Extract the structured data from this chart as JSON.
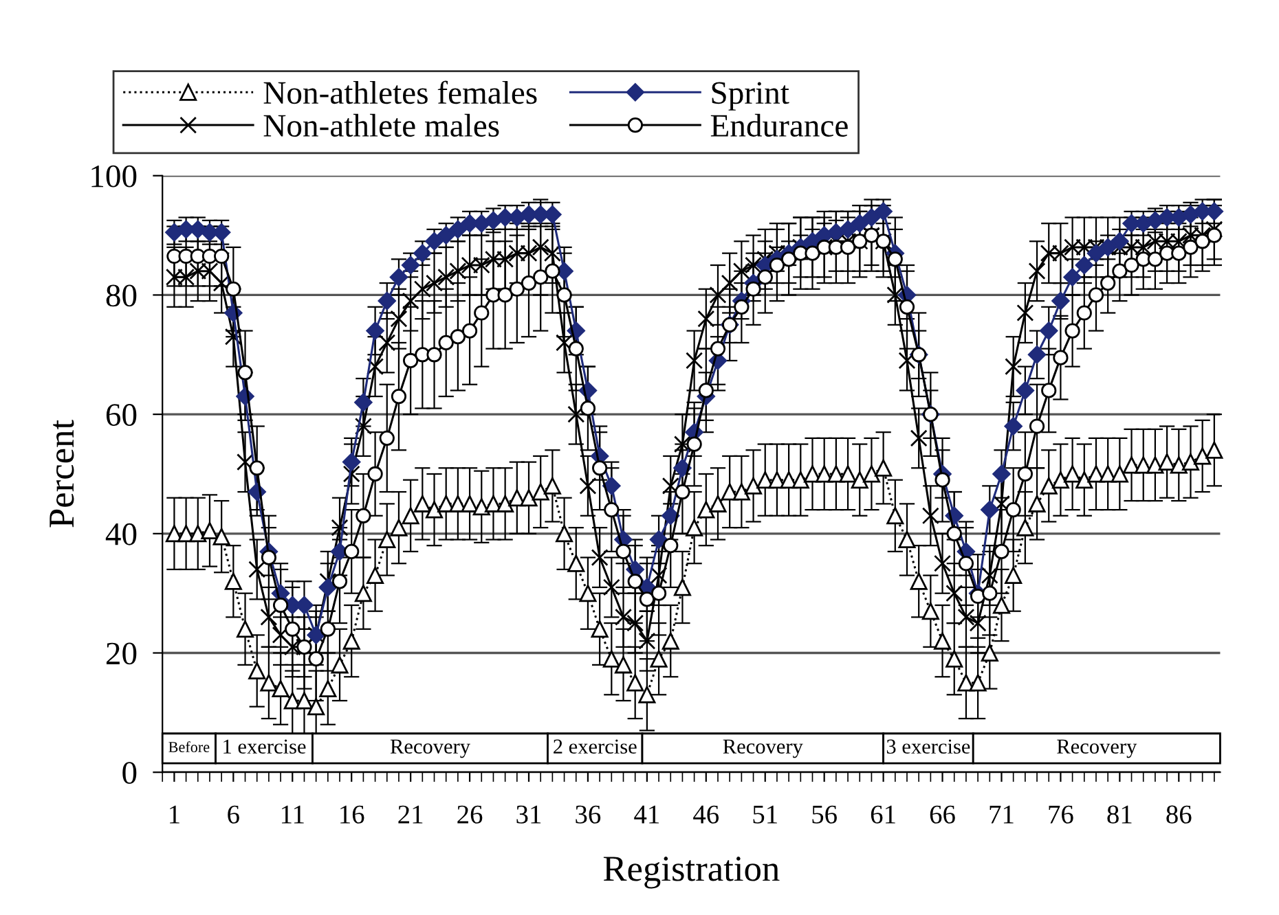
{
  "chart_data": {
    "type": "line",
    "xlabel": "Registration",
    "ylabel": "Percent",
    "x": [
      1,
      2,
      3,
      4,
      5,
      6,
      7,
      8,
      9,
      10,
      11,
      12,
      13,
      14,
      15,
      16,
      17,
      18,
      19,
      20,
      21,
      22,
      23,
      24,
      25,
      26,
      27,
      28,
      29,
      30,
      31,
      32,
      33,
      34,
      35,
      36,
      37,
      38,
      39,
      40,
      41,
      42,
      43,
      44,
      45,
      46,
      47,
      48,
      49,
      50,
      51,
      52,
      53,
      54,
      55,
      56,
      57,
      58,
      59,
      60,
      61,
      62,
      63,
      64,
      65,
      66,
      67,
      68,
      69,
      70,
      71,
      72,
      73,
      74,
      75,
      76,
      77,
      78,
      79,
      80,
      81,
      82,
      83,
      84,
      85,
      86,
      87,
      88,
      89
    ],
    "xlim": [
      0,
      89.5
    ],
    "xticks": [
      1,
      6,
      11,
      16,
      21,
      26,
      31,
      36,
      41,
      46,
      51,
      56,
      61,
      66,
      71,
      76,
      81,
      86
    ],
    "ylim": [
      0,
      100
    ],
    "yticks": [
      0,
      20,
      40,
      60,
      80,
      100
    ],
    "grid": "y",
    "legend": "top",
    "series": [
      {
        "name": "Non-athletes females",
        "color": "#000000",
        "marker": "triangle",
        "line_style": "dotted",
        "values": [
          40,
          40,
          40,
          40.5,
          39.5,
          32,
          24,
          17,
          15,
          14,
          12,
          12,
          11,
          14,
          18,
          22,
          30,
          33,
          39,
          41,
          43,
          45,
          44,
          45,
          45,
          45,
          44.5,
          45,
          45,
          46,
          46,
          47,
          48,
          40,
          35,
          30,
          24,
          19,
          18,
          15,
          13,
          19,
          22,
          31,
          41,
          44,
          45,
          47,
          47,
          48,
          49,
          49,
          49,
          49,
          50,
          50,
          50,
          50,
          49,
          50,
          51,
          43,
          39,
          32,
          27,
          22,
          19,
          15,
          15,
          20,
          28,
          33,
          41,
          45,
          48,
          49,
          50,
          49,
          50,
          50,
          50,
          51.5,
          51.5,
          51.5,
          52,
          51.5,
          52,
          53,
          54
        ],
        "errors": [
          6,
          6,
          6,
          6,
          6,
          6,
          6,
          6,
          6,
          6,
          6,
          6,
          6,
          6,
          6,
          6,
          6,
          6,
          6,
          6,
          6,
          6,
          6,
          6,
          6,
          6,
          6,
          6,
          6,
          6,
          6,
          6,
          6,
          6,
          6,
          6,
          6,
          6,
          6,
          6,
          6,
          6,
          6,
          6,
          6,
          6,
          6,
          6,
          6,
          6,
          6,
          6,
          6,
          6,
          6,
          6,
          6,
          6,
          6,
          6,
          6,
          6,
          6,
          6,
          6,
          6,
          6,
          6,
          6,
          6,
          6,
          6,
          6,
          6,
          6,
          6,
          6,
          6,
          6,
          6,
          6,
          6,
          6,
          6,
          6,
          6,
          6,
          6,
          6
        ]
      },
      {
        "name": "Non-athlete males",
        "color": "#000000",
        "marker": "cross",
        "line_style": "solid",
        "values": [
          83,
          83,
          84,
          84,
          82,
          73,
          52,
          34,
          26,
          23,
          21,
          21,
          23,
          32,
          41,
          50,
          58,
          68,
          72,
          76,
          79,
          81,
          82,
          83,
          84,
          85,
          85,
          86,
          86,
          87,
          87,
          88,
          87,
          72,
          60,
          48,
          36,
          31,
          26,
          25,
          22,
          33,
          48,
          55,
          69,
          76,
          80,
          82,
          84,
          85,
          86,
          87,
          87,
          88,
          88,
          88,
          89,
          89,
          89,
          90,
          89,
          80,
          69,
          56,
          43,
          35,
          30,
          26,
          25,
          33,
          45,
          68,
          77,
          84,
          87,
          87,
          88,
          88,
          88,
          88,
          88,
          88,
          88,
          89,
          89,
          89,
          90,
          90,
          91
        ],
        "errors": [
          5,
          5,
          5,
          5,
          5,
          5,
          5,
          5,
          5,
          5,
          5,
          5,
          5,
          5,
          5,
          5,
          5,
          5,
          5,
          5,
          5,
          5,
          5,
          5,
          5,
          5,
          5,
          5,
          5,
          5,
          5,
          8,
          5,
          5,
          5,
          5,
          5,
          5,
          5,
          5,
          5,
          5,
          5,
          5,
          5,
          5,
          5,
          5,
          5,
          5,
          5,
          5,
          5,
          5,
          5,
          5,
          5,
          5,
          5,
          5,
          5,
          5,
          5,
          5,
          5,
          5,
          5,
          5,
          5,
          5,
          5,
          5,
          5,
          5,
          5,
          5,
          5,
          5,
          5,
          5,
          5,
          5,
          5,
          5,
          5,
          5,
          5,
          5,
          5
        ]
      },
      {
        "name": "Sprint",
        "color": "#1f2b7b",
        "marker": "diamond",
        "line_style": "solid",
        "values": [
          90.5,
          91,
          91,
          90.5,
          90.5,
          77,
          63,
          47,
          37,
          30,
          28,
          28,
          23,
          31,
          37,
          52,
          62,
          74,
          79,
          83,
          85,
          87,
          89,
          90,
          91,
          92,
          92,
          92.5,
          93,
          93,
          93.5,
          93.5,
          93.5,
          84,
          74,
          64,
          53,
          48,
          39,
          34,
          31,
          39,
          43,
          51,
          57,
          63,
          69,
          75,
          79,
          82,
          85,
          86,
          87,
          88,
          89,
          90,
          90.5,
          91,
          92,
          93,
          94,
          87,
          80,
          70,
          60,
          50,
          43,
          37,
          30,
          44,
          50,
          58,
          64,
          70,
          74,
          79,
          83,
          85,
          87,
          88,
          89,
          92,
          92,
          92.5,
          93,
          93,
          93.5,
          94,
          94
        ],
        "errors": [
          2,
          2,
          2,
          2,
          2,
          4,
          4,
          4,
          4,
          4,
          4,
          4,
          4,
          4,
          4,
          4,
          4,
          4,
          3,
          3,
          2,
          2,
          2,
          2,
          2,
          2,
          2,
          2,
          2,
          2,
          2,
          2,
          2,
          4,
          4,
          4,
          4,
          4,
          4,
          4,
          4,
          4,
          4,
          4,
          4,
          4,
          4,
          3,
          3,
          3,
          2,
          2,
          2,
          2,
          2,
          2,
          2,
          2,
          2,
          2,
          2,
          4,
          4,
          4,
          4,
          4,
          4,
          4,
          4,
          4,
          4,
          4,
          4,
          4,
          4,
          3,
          3,
          3,
          2,
          2,
          2,
          2,
          2,
          2,
          2,
          2,
          2,
          2,
          2
        ]
      },
      {
        "name": "Endurance",
        "color": "#000000",
        "marker": "circle",
        "line_style": "solid",
        "values": [
          86.5,
          86.5,
          86.5,
          86.5,
          86.5,
          81,
          67,
          51,
          36,
          28,
          24,
          21,
          19,
          24,
          32,
          37,
          43,
          50,
          56,
          63,
          69,
          70,
          70,
          72,
          73,
          74,
          77,
          80,
          80,
          81,
          82,
          83,
          84,
          80,
          71,
          61,
          51,
          44,
          37,
          32,
          29,
          30,
          38,
          47,
          55,
          64,
          71,
          75,
          78,
          81,
          83,
          85,
          86,
          87,
          87,
          88,
          88,
          88,
          89,
          90,
          89,
          86,
          78,
          70,
          60,
          49,
          40,
          35,
          29.5,
          30,
          37,
          44,
          50,
          58,
          64,
          69.5,
          74,
          77,
          80,
          82,
          84,
          85,
          86,
          86,
          87,
          87,
          88,
          89,
          90
        ],
        "errors": [
          5,
          5,
          5,
          5,
          5,
          7,
          7,
          7,
          7,
          7,
          7,
          7,
          7,
          7,
          7,
          7,
          7,
          7,
          9,
          9,
          9,
          9,
          9,
          9,
          9,
          9,
          9,
          9,
          9,
          9,
          9,
          9,
          7,
          7,
          7,
          7,
          7,
          7,
          7,
          7,
          7,
          7,
          7,
          7,
          7,
          7,
          7,
          6,
          6,
          6,
          6,
          6,
          6,
          6,
          6,
          6,
          6,
          6,
          6,
          6,
          6,
          7,
          7,
          7,
          7,
          7,
          7,
          7,
          7,
          7,
          7,
          7,
          7,
          7,
          7,
          7,
          6,
          6,
          6,
          5,
          5,
          5,
          5,
          5,
          5,
          5,
          5,
          5,
          5
        ]
      }
    ],
    "bands": [
      {
        "axis": "x",
        "from": 0,
        "to": 4.5,
        "label": "Before",
        "color": "#ffffff"
      },
      {
        "axis": "x",
        "from": 4.5,
        "to": 12.7,
        "label": "1 exercise",
        "color": "#ffffff"
      },
      {
        "axis": "x",
        "from": 12.7,
        "to": 32.6,
        "label": "Recovery",
        "color": "#ffffff"
      },
      {
        "axis": "x",
        "from": 32.6,
        "to": 40.6,
        "label": "2 exercise",
        "color": "#ffffff"
      },
      {
        "axis": "x",
        "from": 40.6,
        "to": 61,
        "label": "Recovery",
        "color": "#ffffff"
      },
      {
        "axis": "x",
        "from": 61,
        "to": 68.6,
        "label": "3 exercise",
        "color": "#ffffff"
      },
      {
        "axis": "x",
        "from": 68.6,
        "to": 89.5,
        "label": "Recovery",
        "color": "#ffffff"
      }
    ]
  }
}
